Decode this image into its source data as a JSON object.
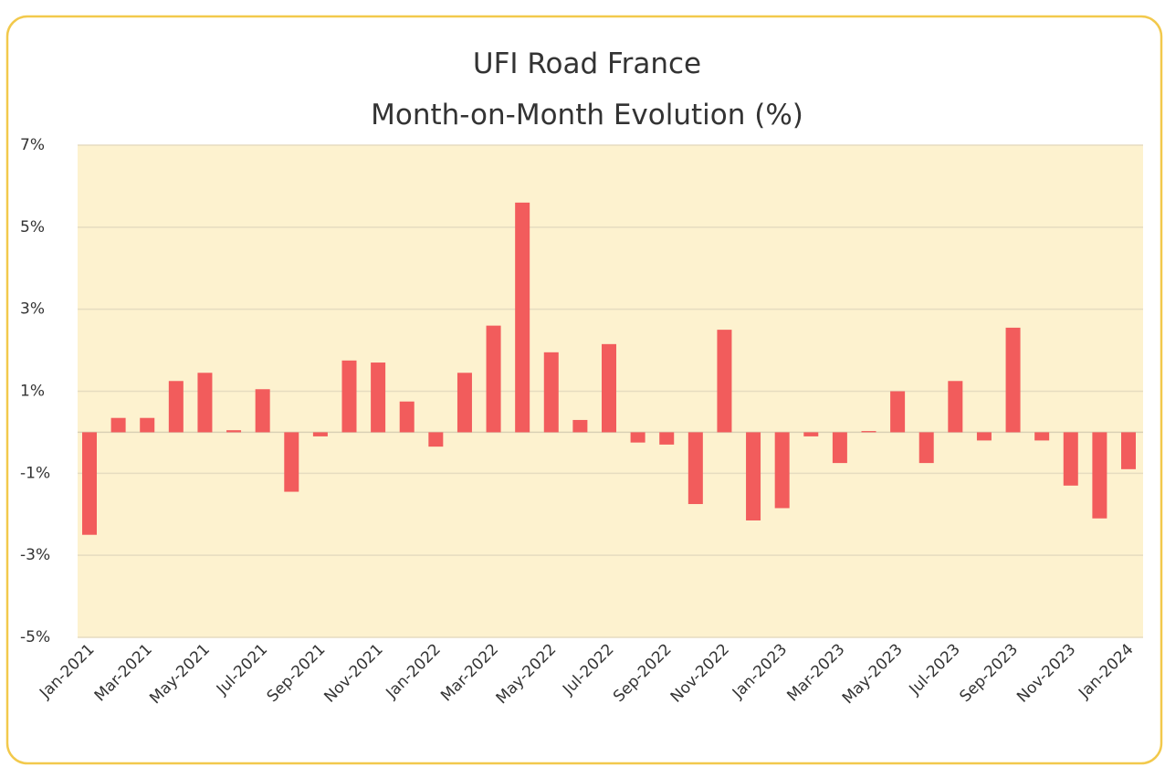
{
  "chart_data": {
    "type": "bar",
    "title": "UFI Road France",
    "subtitle": "Month-on-Month Evolution (%)",
    "categories": [
      "Jan-2021",
      null,
      "Mar-2021",
      null,
      "May-2021",
      null,
      "Jul-2021",
      null,
      "Sep-2021",
      null,
      "Nov-2021",
      null,
      "Jan-2022",
      null,
      "Mar-2022",
      null,
      "May-2022",
      null,
      "Jul-2022",
      null,
      "Sep-2022",
      null,
      "Nov-2022",
      null,
      "Jan-2023",
      null,
      "Mar-2023",
      null,
      "May-2023",
      null,
      "Jul-2023",
      null,
      "Sep-2023",
      null,
      "Nov-2023",
      null,
      "Jan-2024"
    ],
    "values": [
      -2.5,
      0.35,
      0.35,
      1.25,
      1.45,
      0.05,
      1.05,
      -1.45,
      -0.1,
      1.75,
      1.7,
      0.75,
      -0.35,
      1.45,
      2.6,
      5.6,
      1.95,
      0.3,
      2.15,
      -0.25,
      -0.3,
      -1.75,
      2.5,
      -2.15,
      -1.85,
      -0.1,
      -0.75,
      0.03,
      1.0,
      -0.75,
      1.25,
      -0.2,
      2.55,
      -0.2,
      -1.3,
      -2.1,
      -0.9
    ],
    "color": "#f25c5c",
    "ylim": [
      -5,
      7
    ],
    "yticks": [
      {
        "value": 7,
        "label": "7%"
      },
      {
        "value": 5,
        "label": "5%"
      },
      {
        "value": 3,
        "label": "3%"
      },
      {
        "value": 1,
        "label": "1%"
      },
      {
        "value": -1,
        "label": "-1%"
      },
      {
        "value": -3,
        "label": "-3%"
      },
      {
        "value": -5,
        "label": "-5%"
      }
    ],
    "grid": true
  }
}
